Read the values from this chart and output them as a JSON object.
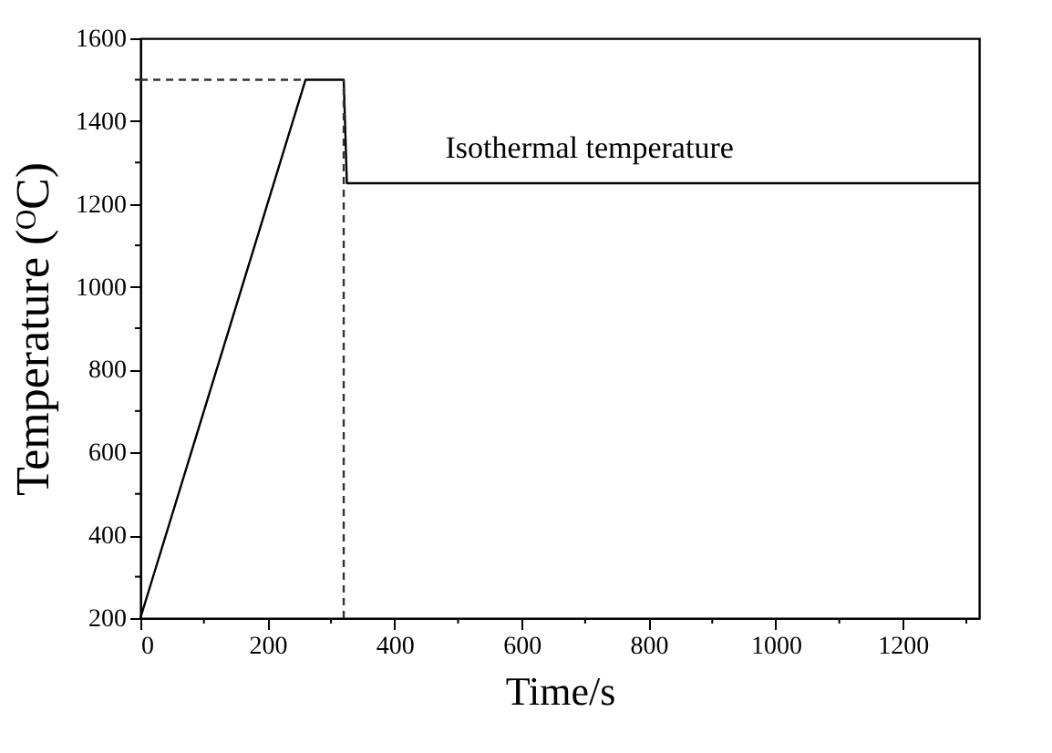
{
  "chart_data": {
    "type": "line",
    "xlabel": "Time/s",
    "ylabel": "Temperature (ᴼC)",
    "series": [
      {
        "color": "#000000",
        "line_style": "solid",
        "x": [
          0,
          260,
          320,
          325,
          1320
        ],
        "values": [
          200,
          1500,
          1500,
          1250,
          1250
        ]
      },
      {
        "color": "#333333",
        "line_style": "dashed",
        "x": [
          0,
          260
        ],
        "values": [
          1500,
          1500
        ]
      },
      {
        "color": "#333333",
        "line_style": "dashed",
        "x": [
          320,
          320
        ],
        "values": [
          200,
          1500
        ]
      }
    ],
    "annotations": [
      {
        "text": "Isothermal temperature",
        "x": 480,
        "y": 1250
      }
    ],
    "xlim": [
      0,
      1320
    ],
    "ylim": [
      200,
      1600
    ],
    "xticks": [
      0,
      {
        "value": 100,
        "label": null
      },
      200,
      {
        "value": 300,
        "label": null
      },
      400,
      {
        "value": 500,
        "label": null
      },
      600,
      {
        "value": 700,
        "label": null
      },
      800,
      {
        "value": 900,
        "label": null
      },
      1000,
      {
        "value": 1100,
        "label": null
      },
      1200,
      {
        "value": 1300,
        "label": null
      }
    ],
    "yticks": [
      200,
      {
        "value": 300,
        "label": null
      },
      400,
      {
        "value": 500,
        "label": null
      },
      600,
      {
        "value": 700,
        "label": null
      },
      800,
      {
        "value": 900,
        "label": null
      },
      1000,
      {
        "value": 1100,
        "label": null
      },
      1200,
      {
        "value": 1300,
        "label": null
      },
      1400,
      {
        "value": 1500,
        "label": null
      },
      1600
    ],
    "grid": false,
    "marker": "none"
  }
}
